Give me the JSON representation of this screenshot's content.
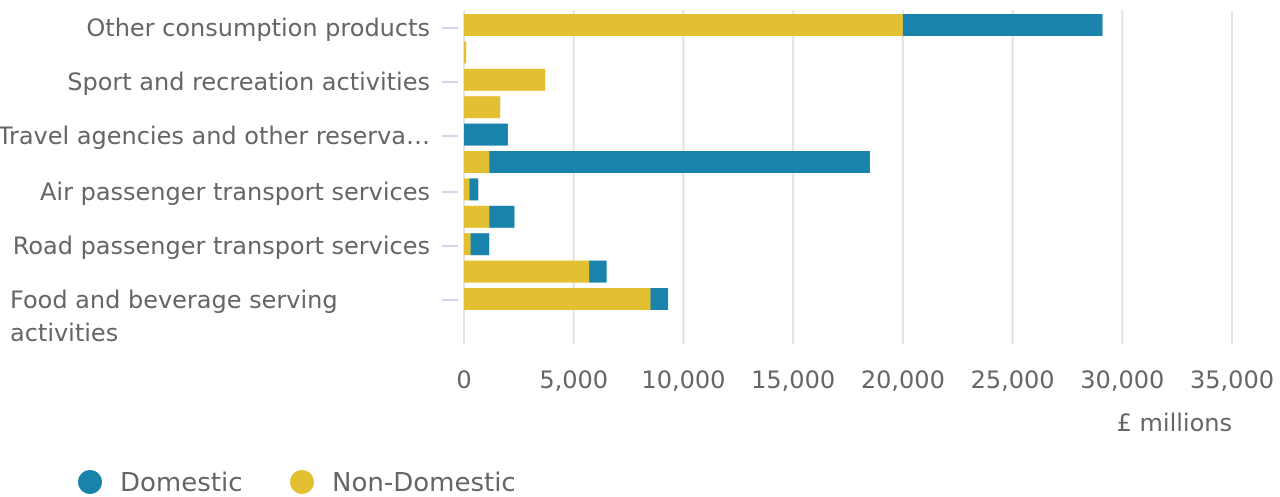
{
  "chart_data": {
    "type": "bar",
    "orientation": "horizontal",
    "stacked": true,
    "title": "",
    "xlabel": "£ millions",
    "ylabel": "",
    "xlim": [
      0,
      35000
    ],
    "x_ticks": [
      "0",
      "5,000",
      "10,000",
      "15,000",
      "20,000",
      "25,000",
      "30,000",
      "35,000"
    ],
    "grid": true,
    "legend_position": "bottom-left",
    "category_labels": [
      [
        "Other consumption products"
      ],
      [
        "Sport and recreation activities"
      ],
      [
        "Travel agencies and other reserva…"
      ],
      [
        "Air passenger transport services"
      ],
      [
        "Road passenger transport services"
      ],
      [
        "Food and beverage serving",
        "activities"
      ]
    ],
    "rows": [
      "Other consumption products",
      "",
      "Sport and recreation activities",
      "",
      "Travel agencies and other reserva…",
      "Air passenger transport services",
      "",
      "Road passenger transport services",
      "",
      "Food and beverage serving activities",
      ""
    ],
    "series": [
      {
        "name": "Non-Domestic",
        "color": "#e3c032",
        "values": [
          20000,
          100,
          3700,
          1650,
          0,
          1150,
          250,
          1150,
          300,
          5700,
          8500
        ]
      },
      {
        "name": "Domestic",
        "color": "#1a83ab",
        "values": [
          9100,
          0,
          0,
          0,
          2000,
          17350,
          400,
          1150,
          850,
          800,
          800
        ]
      }
    ]
  }
}
